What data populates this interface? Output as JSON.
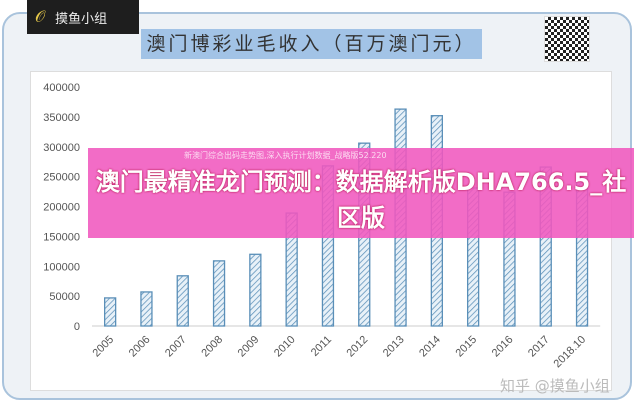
{
  "logo": {
    "text": "摸鱼小组"
  },
  "chart_data": {
    "type": "bar",
    "title": "澳门博彩业毛收入（百万澳门元）",
    "categories": [
      "2005",
      "2006",
      "2007",
      "2008",
      "2009",
      "2010",
      "2011",
      "2012",
      "2013",
      "2014",
      "2015",
      "2016",
      "2017",
      "2018.10"
    ],
    "values": [
      47000,
      57000,
      84000,
      109000,
      120000,
      189000,
      268000,
      306000,
      363000,
      352000,
      231000,
      224000,
      266000,
      253000
    ],
    "ylim": [
      0,
      400000
    ],
    "yticks": [
      0,
      50000,
      100000,
      150000,
      200000,
      250000,
      300000,
      350000,
      400000
    ],
    "grid": false,
    "bar_color": "#5a8fb8"
  },
  "banner": {
    "headline": "澳门最精准龙门预测：数据解析版DHA766.5_社区版",
    "subtext": "新澳门综合出码走势图,深入执行计划数据_战略版52.220"
  },
  "watermark": "知乎 @摸鱼小组"
}
